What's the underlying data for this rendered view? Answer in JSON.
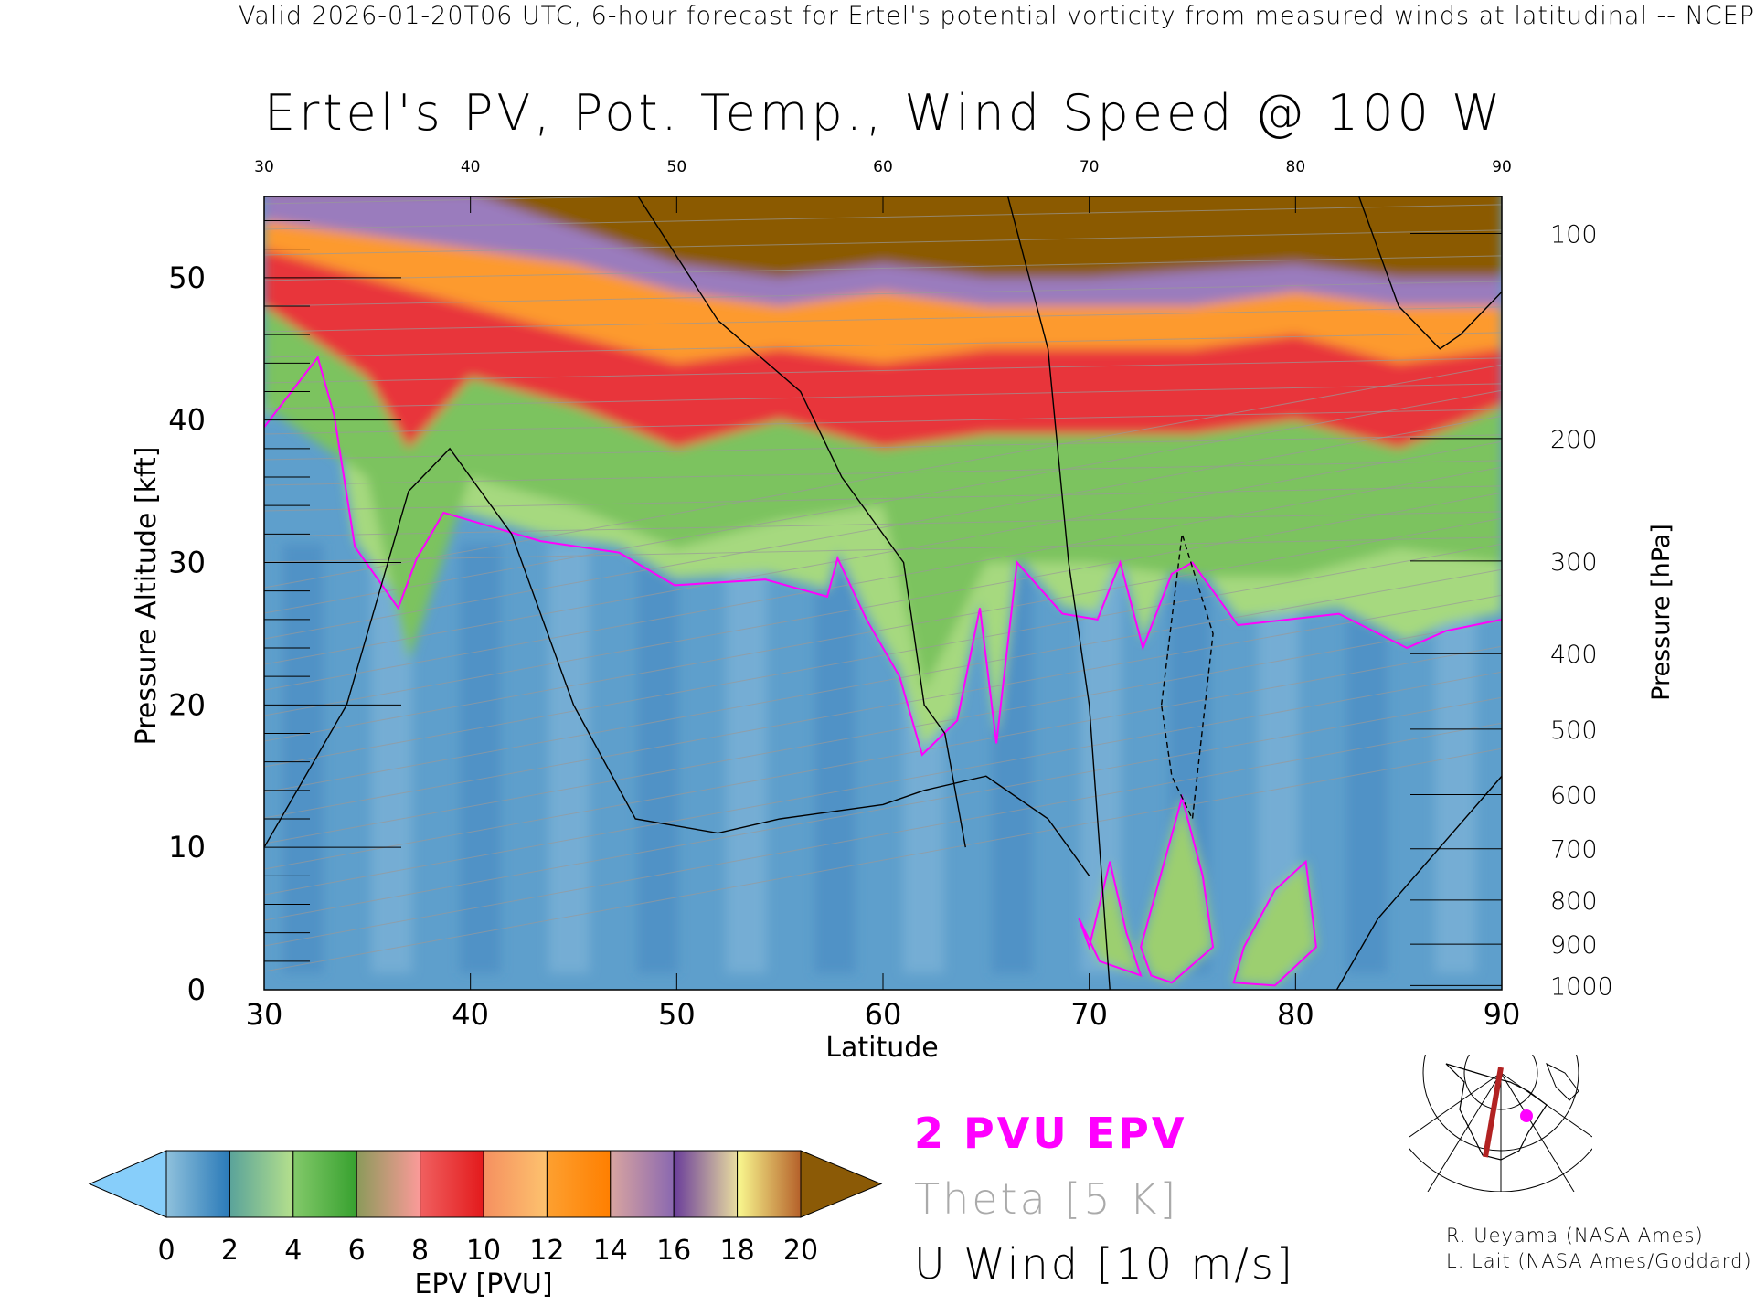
{
  "header": "Valid 2026-01-20T06 UTC, 6-hour forecast for Ertel's potential vorticity from measured winds at latitudinal -- NCEP",
  "chart_data": {
    "type": "heatmap",
    "title": "Ertel's PV, Pot. Temp., Wind Speed @ 100 W",
    "xlabel": "Latitude",
    "ylabel": "Pressure Altitude [kft]",
    "y2label": "Pressure [hPa]",
    "xlim": [
      30,
      90
    ],
    "ylim": [
      0,
      55.7
    ],
    "x_ticks": [
      "30",
      "40",
      "50",
      "60",
      "70",
      "80",
      "90"
    ],
    "x_tick_values": [
      30,
      40,
      50,
      60,
      70,
      80,
      90
    ],
    "y_ticks": [
      "0",
      "10",
      "20",
      "30",
      "40",
      "50"
    ],
    "y_tick_values": [
      0,
      10,
      20,
      30,
      40,
      50
    ],
    "pressure_ticks": [
      {
        "label": "100",
        "kft": 53.1
      },
      {
        "label": "200",
        "kft": 38.7
      },
      {
        "label": "300",
        "kft": 30.1
      },
      {
        "label": "400",
        "kft": 23.6
      },
      {
        "label": "500",
        "kft": 18.3
      },
      {
        "label": "600",
        "kft": 13.7
      },
      {
        "label": "700",
        "kft": 9.9
      },
      {
        "label": "800",
        "kft": 6.3
      },
      {
        "label": "900",
        "kft": 3.2
      },
      {
        "label": "1000",
        "kft": 0.3
      }
    ],
    "epv_level_tops": [
      {
        "pvu": 6,
        "color": "#7cc35f",
        "lat": [
          30,
          35,
          37,
          40,
          45,
          50,
          55,
          60,
          62,
          65,
          70,
          75,
          80,
          85,
          90
        ],
        "kft": [
          45,
          40,
          27,
          40,
          38,
          35,
          37,
          38,
          25,
          34,
          34,
          33,
          33,
          35,
          34
        ]
      },
      {
        "pvu": 10,
        "color": "#e8353a",
        "lat": [
          30,
          35,
          37,
          40,
          45,
          50,
          55,
          60,
          65,
          70,
          75,
          80,
          85,
          90
        ],
        "kft": [
          52,
          47,
          42,
          47,
          45,
          42,
          44,
          42,
          43,
          43,
          43,
          44,
          42,
          45
        ]
      },
      {
        "pvu": 14,
        "color": "#fd9a2e",
        "lat": [
          30,
          35,
          40,
          45,
          50,
          55,
          60,
          65,
          70,
          75,
          80,
          85,
          90
        ],
        "kft": [
          56,
          54,
          52,
          50,
          48,
          49,
          48,
          49,
          49,
          49,
          50,
          48,
          49
        ]
      },
      {
        "pvu": 18,
        "color": "#9a7bbd",
        "lat": [
          30,
          40,
          45,
          50,
          55,
          60,
          65,
          70,
          75,
          80,
          85,
          90
        ],
        "kft": [
          58,
          56,
          55,
          53,
          52,
          53,
          52,
          52,
          52,
          53,
          52,
          52
        ]
      },
      {
        "pvu": 20,
        "color": "#8b5a06",
        "lat": [
          30,
          40,
          48,
          50,
          55,
          60,
          65,
          70,
          75,
          80,
          85,
          90
        ],
        "kft": [
          60,
          60,
          56,
          55,
          54,
          55,
          54,
          54,
          54.5,
          55,
          54,
          54
        ]
      }
    ],
    "pv2_tropopause": {
      "lat": [
        30,
        32.6,
        33.4,
        34.4,
        36.5,
        37.4,
        38.7,
        43.4,
        47.2,
        49.9,
        54.3,
        57.3,
        57.8,
        59.2,
        60.8,
        61.9,
        63.6,
        64.7,
        65.5,
        66.5,
        68.7,
        70.4,
        71.5,
        72.6,
        74,
        75,
        77.2,
        82.1,
        85.4,
        87.3,
        90
      ],
      "kft": [
        39.5,
        44.4,
        40.3,
        31.1,
        26.8,
        30.3,
        33.5,
        31.5,
        30.7,
        28.4,
        28.8,
        27.6,
        30.3,
        26,
        22,
        16.5,
        18.9,
        26.8,
        17.3,
        30,
        26.4,
        26,
        30,
        24,
        29.2,
        30,
        25.6,
        26.4,
        24,
        25.2,
        26
      ]
    },
    "low_level_pv2_regions": [
      {
        "lat": [
          70,
          71,
          71.8,
          72.5,
          70.5,
          69.5
        ],
        "kft": [
          3,
          9,
          4,
          1,
          2,
          5
        ]
      },
      {
        "lat": [
          72.5,
          74.5,
          75.5,
          76,
          74,
          73
        ],
        "kft": [
          3,
          13.5,
          8,
          3,
          0.5,
          1
        ]
      },
      {
        "lat": [
          77.5,
          79,
          80.5,
          81,
          79,
          77
        ],
        "kft": [
          3,
          7,
          9,
          3,
          0.3,
          0.5
        ]
      }
    ]
  },
  "colorbar": {
    "label": "EPV [PVU]",
    "ticks": [
      "0",
      "2",
      "4",
      "6",
      "8",
      "10",
      "12",
      "14",
      "16",
      "18",
      "20"
    ],
    "under_color": "#87cefa",
    "over_color": "#8b5a06",
    "segments": [
      [
        "#8fc1dc",
        "#2a7ab8"
      ],
      [
        "#5aa39a",
        "#b5e08c"
      ],
      [
        "#83c96a",
        "#37a12f"
      ],
      [
        "#8b9a5a",
        "#fb9a99"
      ],
      [
        "#f06060",
        "#e31a1c"
      ],
      [
        "#f59060",
        "#fdc26e"
      ],
      [
        "#fda030",
        "#ff7f00"
      ],
      [
        "#d9a5a0",
        "#8a68b0"
      ],
      [
        "#6a3d9a",
        "#e8dca0"
      ],
      [
        "#fafa90",
        "#b5612a"
      ]
    ]
  },
  "legend": {
    "pv2": "2 PVU EPV",
    "theta": "Theta [5 K]",
    "wind": "U Wind [10 m/s]",
    "pv2_color": "#ff00ff",
    "theta_color": "#aaaaaa"
  },
  "credits": [
    "R. Ueyama (NASA Ames)",
    "L. Lait (NASA Ames/Goddard)"
  ]
}
